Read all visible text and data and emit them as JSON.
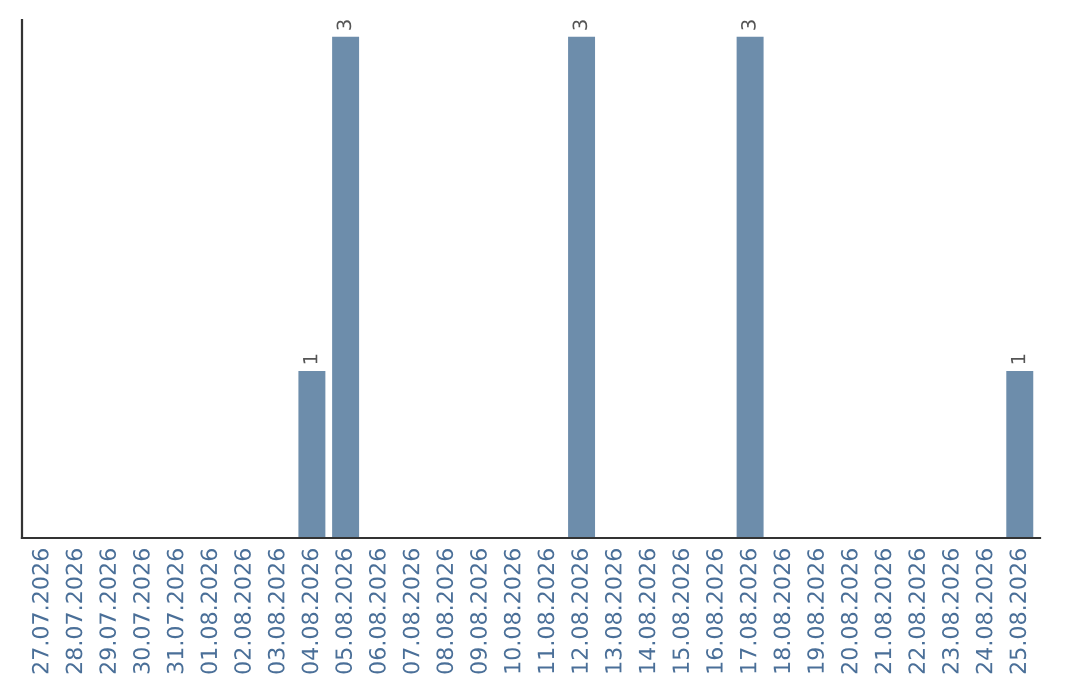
{
  "chart_data": {
    "type": "bar",
    "categories": [
      "27.07.2026",
      "28.07.2026",
      "29.07.2026",
      "30.07.2026",
      "31.07.2026",
      "01.08.2026",
      "02.08.2026",
      "03.08.2026",
      "04.08.2026",
      "05.08.2026",
      "06.08.2026",
      "07.08.2026",
      "08.08.2026",
      "09.08.2026",
      "10.08.2026",
      "11.08.2026",
      "12.08.2026",
      "13.08.2026",
      "14.08.2026",
      "15.08.2026",
      "16.08.2026",
      "17.08.2026",
      "18.08.2026",
      "19.08.2026",
      "20.08.2026",
      "21.08.2026",
      "22.08.2026",
      "23.08.2026",
      "24.08.2026",
      "25.08.2026"
    ],
    "values": [
      0,
      0,
      0,
      0,
      0,
      0,
      0,
      0,
      1,
      3,
      0,
      0,
      0,
      0,
      0,
      0,
      3,
      0,
      0,
      0,
      0,
      3,
      0,
      0,
      0,
      0,
      0,
      0,
      0,
      1
    ],
    "value_labels": [
      null,
      null,
      null,
      null,
      null,
      null,
      null,
      null,
      "1",
      "3",
      null,
      null,
      null,
      null,
      null,
      null,
      "3",
      null,
      null,
      null,
      null,
      "3",
      null,
      null,
      null,
      null,
      null,
      null,
      null,
      "1"
    ],
    "color": "#6d8dab",
    "ylim": [
      0,
      3.1
    ],
    "tick_labels": "x",
    "grid": false,
    "legend": false
  }
}
